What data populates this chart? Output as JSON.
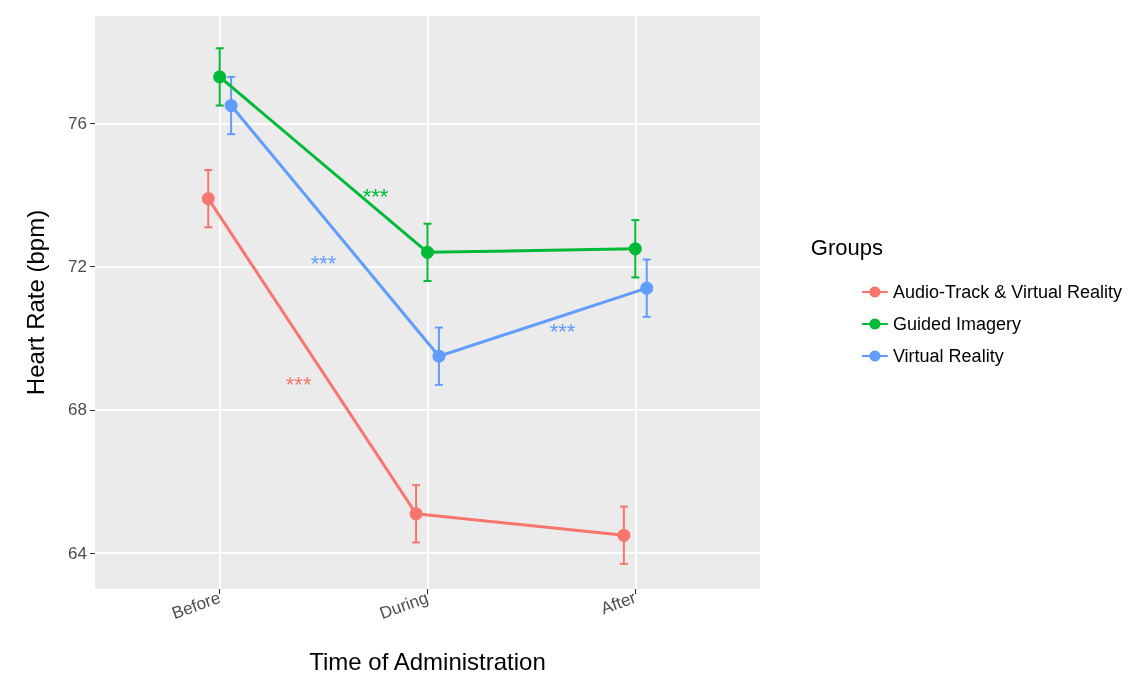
{
  "chart_data": {
    "type": "line",
    "xlabel": "Time of Administration",
    "ylabel": "Heart Rate (bpm)",
    "legend_title": "Groups",
    "categories": [
      "Before",
      "During",
      "After"
    ],
    "series": [
      {
        "name": "Audio-Track & Virtual Reality",
        "color": "#f8766d",
        "values": [
          73.9,
          65.1,
          64.5
        ],
        "errors": [
          0.8,
          0.8,
          0.8
        ]
      },
      {
        "name": "Guided Imagery",
        "color": "#00ba38",
        "values": [
          77.3,
          72.4,
          72.5
        ],
        "errors": [
          0.8,
          0.8,
          0.8
        ]
      },
      {
        "name": "Virtual Reality",
        "color": "#619cff",
        "values": [
          76.5,
          69.5,
          71.4
        ],
        "errors": [
          0.8,
          0.8,
          0.8
        ]
      }
    ],
    "annotations": [
      "***",
      "***",
      "***",
      "***"
    ],
    "ylim": [
      63,
      79
    ],
    "yticks": [
      64,
      68,
      72,
      76
    ],
    "grid": true,
    "legend": "right",
    "marker": "circle",
    "line_style": "solid"
  }
}
